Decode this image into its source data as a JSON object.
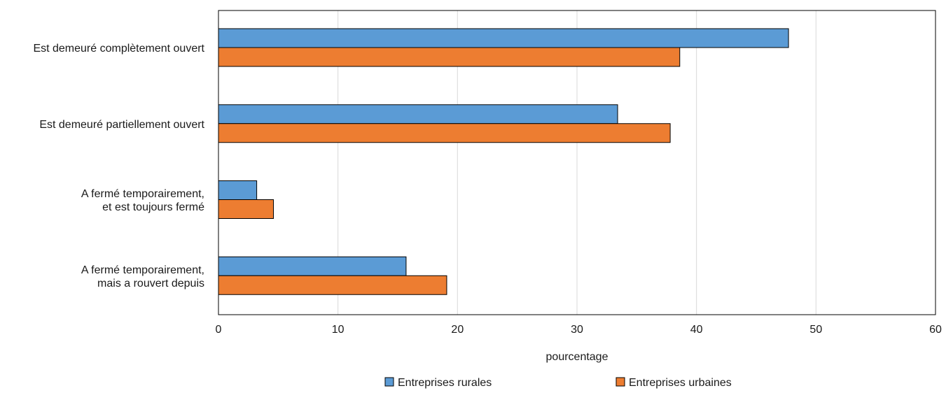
{
  "chart_data": {
    "type": "bar",
    "orientation": "horizontal",
    "categories": [
      [
        "Est demeuré complètement ouvert"
      ],
      [
        "Est demeuré partiellement ouvert"
      ],
      [
        "A fermé temporairement,",
        "et est toujours fermé"
      ],
      [
        "A fermé temporairement,",
        "mais a rouvert depuis"
      ]
    ],
    "series": [
      {
        "name": "Entreprises rurales",
        "color": "#5b9bd5",
        "values": [
          47.7,
          33.4,
          3.2,
          15.7
        ]
      },
      {
        "name": "Entreprises urbaines",
        "color": "#ed7d31",
        "values": [
          38.6,
          37.8,
          4.6,
          19.1
        ]
      }
    ],
    "xlabel": "pourcentage",
    "ylabel": "",
    "title": "",
    "xlim": [
      0,
      60
    ],
    "xticks": [
      0,
      10,
      20,
      30,
      40,
      50,
      60
    ],
    "grid": "vertical",
    "legend_position": "bottom"
  }
}
